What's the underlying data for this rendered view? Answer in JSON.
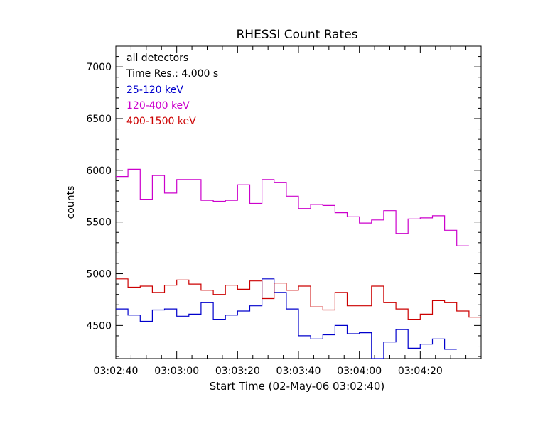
{
  "chart_data": {
    "type": "line",
    "title": "RHESSI Count Rates",
    "xlabel": "Start Time (02-May-06 03:02:40)",
    "ylabel": "counts",
    "x_start": "03:02:40",
    "bin_seconds": 4,
    "xlim_seconds": [
      0,
      120
    ],
    "ylim": [
      4180,
      7200
    ],
    "x_ticks": [
      "03:02:40",
      "03:03:00",
      "03:03:20",
      "03:03:40",
      "03:04:00",
      "03:04:20"
    ],
    "y_ticks": [
      4500,
      5000,
      5500,
      6000,
      6500,
      7000
    ],
    "legend": {
      "placement": "top-left",
      "notes": [
        "all detectors",
        "Time Res.: 4.000 s"
      ]
    },
    "series": [
      {
        "name": "25-120 keV",
        "color": "#0000cc",
        "values": [
          4660,
          4600,
          4540,
          4650,
          4660,
          4590,
          4610,
          4720,
          4560,
          4600,
          4640,
          4690,
          4950,
          4820,
          4660,
          4400,
          4370,
          4410,
          4500,
          4420,
          4430,
          4180,
          4340,
          4460,
          4280,
          4320,
          4370,
          4270
        ]
      },
      {
        "name": "120-400 keV",
        "color": "#cc00cc",
        "values": [
          5940,
          6010,
          5720,
          5950,
          5780,
          5910,
          5910,
          5710,
          5700,
          5710,
          5860,
          5680,
          5910,
          5880,
          5750,
          5630,
          5670,
          5660,
          5590,
          5550,
          5490,
          5520,
          5610,
          5390,
          5530,
          5540,
          5560,
          5420,
          5270
        ]
      },
      {
        "name": "400-1500 keV",
        "color": "#cc0000",
        "values": [
          4950,
          4870,
          4880,
          4820,
          4890,
          4940,
          4900,
          4840,
          4800,
          4890,
          4850,
          4930,
          4760,
          4910,
          4840,
          4880,
          4680,
          4650,
          4820,
          4690,
          4690,
          4880,
          4720,
          4660,
          4560,
          4610,
          4740,
          4720,
          4640,
          4580
        ]
      }
    ]
  }
}
